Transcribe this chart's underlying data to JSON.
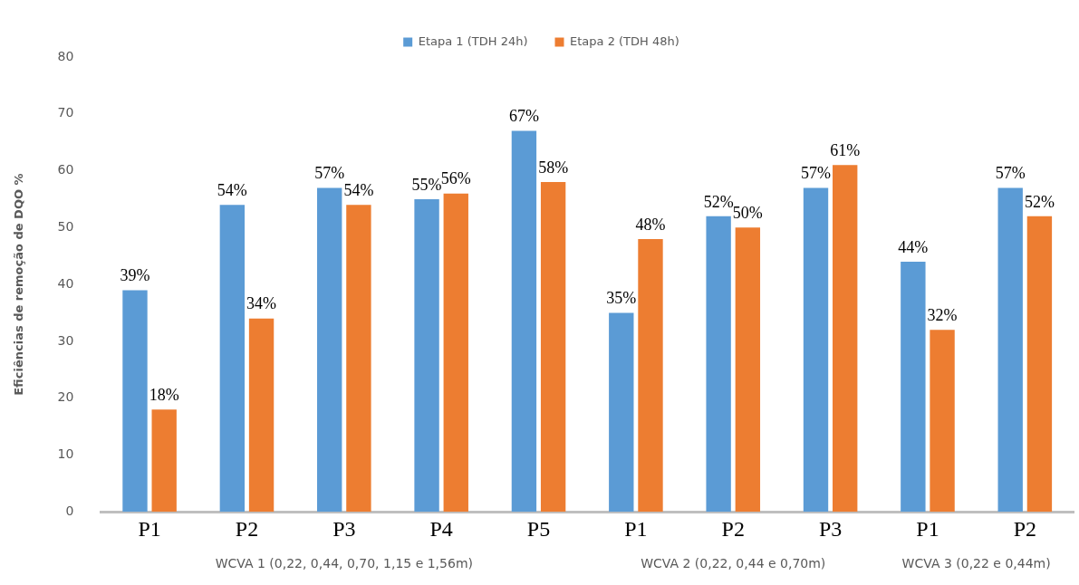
{
  "chart_data": {
    "type": "bar",
    "ylabel": "Eficiências de remoção de DQO %",
    "categories": [
      "P1",
      "P2",
      "P3",
      "P4",
      "P5",
      "P1",
      "P2",
      "P3",
      "P1",
      "P2"
    ],
    "series": [
      {
        "name": "Etapa 1 (TDH 24h)",
        "color": "#5b9bd5",
        "values": [
          39,
          54,
          57,
          55,
          67,
          35,
          52,
          57,
          44,
          57
        ],
        "value_labels": [
          "39%",
          "54%",
          "57%",
          "55%",
          "67%",
          "35%",
          "52%",
          "57%",
          "44%",
          "57%"
        ]
      },
      {
        "name": "Etapa 2 (TDH 48h)",
        "color": "#ed7d31",
        "values": [
          18,
          34,
          54,
          56,
          58,
          48,
          50,
          61,
          32,
          52
        ],
        "value_labels": [
          "18%",
          "34%",
          "54%",
          "56%",
          "58%",
          "48%",
          "50%",
          "61%",
          "32%",
          "52%"
        ]
      }
    ],
    "ylim": [
      0,
      80
    ],
    "yticks": [
      0,
      10,
      20,
      30,
      40,
      50,
      60,
      70,
      80
    ],
    "grid": false,
    "legend": "top",
    "annotations": [
      "WCVA 1 (0,22, 0,44, 0,70, 1,15 e 1,56m)",
      "WCVA 2 (0,22, 0,44 e 0,70m)",
      "WCVA 3 (0,22 e 0,44m)"
    ]
  }
}
